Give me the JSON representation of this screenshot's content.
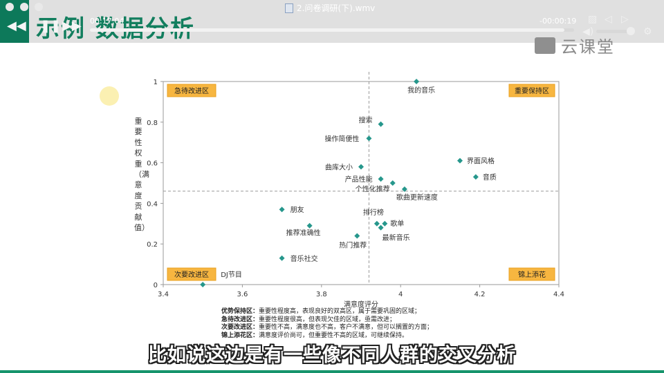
{
  "header": {
    "title": "示例 数据分析"
  },
  "player": {
    "file_title": "2.问卷调研(下).wmv",
    "time_elapsed": "00:17:04",
    "time_remaining": "-00:00:19",
    "progress": 0.98,
    "brand": "云课堂"
  },
  "chart_data": {
    "type": "scatter",
    "xlabel": "满意度评分",
    "ylabel": "重要性权重（满意度贡献值）",
    "xlim": [
      3.4,
      4.4
    ],
    "ylim": [
      0,
      1
    ],
    "xticks": [
      "3.4",
      "3.6",
      "3.8",
      "4",
      "4.2",
      "4.4"
    ],
    "yticks": [
      "0",
      "0.2",
      "0.4",
      "0.6",
      "0.8",
      "1"
    ],
    "reference_lines": {
      "x": 3.92,
      "y": 0.46
    },
    "marker_color": "#26978c",
    "points": [
      {
        "label": "我的音乐",
        "x": 4.04,
        "y": 1.0
      },
      {
        "label": "搜索",
        "x": 3.95,
        "y": 0.79
      },
      {
        "label": "操作简便性",
        "x": 3.92,
        "y": 0.72
      },
      {
        "label": "界面风格",
        "x": 4.15,
        "y": 0.61
      },
      {
        "label": "曲库大小",
        "x": 3.9,
        "y": 0.58
      },
      {
        "label": "音质",
        "x": 4.19,
        "y": 0.53
      },
      {
        "label": "产品性能",
        "x": 3.95,
        "y": 0.52
      },
      {
        "label": "个性化推荐",
        "x": 3.98,
        "y": 0.5
      },
      {
        "label": "歌曲更新速度",
        "x": 4.01,
        "y": 0.47
      },
      {
        "label": "朋友",
        "x": 3.7,
        "y": 0.37
      },
      {
        "label": "排行榜",
        "x": 3.94,
        "y": 0.3
      },
      {
        "label": "歌单",
        "x": 3.96,
        "y": 0.3
      },
      {
        "label": "推荐准确性",
        "x": 3.77,
        "y": 0.29
      },
      {
        "label": "最新音乐",
        "x": 3.95,
        "y": 0.28
      },
      {
        "label": "热门推荐",
        "x": 3.89,
        "y": 0.24
      },
      {
        "label": "音乐社交",
        "x": 3.7,
        "y": 0.13
      },
      {
        "label": "DJ节目",
        "x": 3.5,
        "y": 0.0
      }
    ],
    "quadrants": {
      "top_left": "急待改进区",
      "top_right": "重要保持区",
      "bottom_left": "次要改进区",
      "bottom_right": "锦上添花"
    }
  },
  "legend": [
    {
      "term": "优势保持区：",
      "desc": "重要性程度高，表现良好的双高区，属于需要巩固的区域；"
    },
    {
      "term": "急待改进区：",
      "desc": "重要性程度很高，但表现欠佳的区域，亟需改进；"
    },
    {
      "term": "次要改进区：",
      "desc": "重要性不高，满意度也不高，客户不满意，但可以搁置的方面；"
    },
    {
      "term": "锦上添花区：",
      "desc": "满意度评价尚可，但重要性不高的区域，可继续保持。"
    }
  ],
  "subtitle": "比如说这边是有一些像不同人群的交叉分析"
}
